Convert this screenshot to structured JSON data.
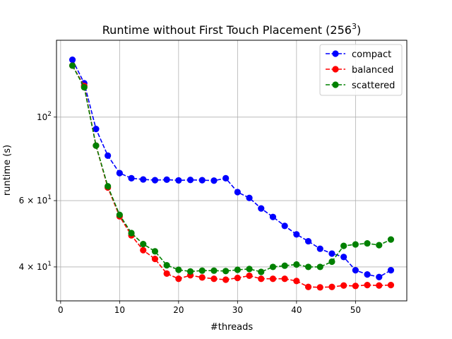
{
  "chart_data": {
    "type": "line",
    "title": "Runtime without First Touch Placement (256",
    "title_sup": "3",
    "title_end": ")",
    "xlabel": "#threads",
    "ylabel": "runtime (s)",
    "xlim": [
      -0.7,
      58.7
    ],
    "ylim": [
      32.5,
      160
    ],
    "yscale": "log",
    "grid": true,
    "legend_position": "top-right",
    "xticks": [
      0,
      10,
      20,
      30,
      40,
      50
    ],
    "yticks": [
      {
        "value": 100,
        "base": "10",
        "exp": "2",
        "prefix": ""
      },
      {
        "value": 60,
        "base": "10",
        "exp": "1",
        "prefix": "6 × "
      },
      {
        "value": 40,
        "base": "10",
        "exp": "1",
        "prefix": "4 × "
      }
    ],
    "x": [
      2,
      4,
      6,
      8,
      10,
      12,
      14,
      16,
      18,
      20,
      22,
      24,
      26,
      28,
      30,
      32,
      34,
      36,
      38,
      40,
      42,
      44,
      46,
      48,
      50,
      52,
      54,
      56
    ],
    "series": [
      {
        "name": "compact",
        "color": "#0000ff",
        "values": [
          142,
          123,
          93,
          79,
          71,
          68.8,
          68.3,
          68.0,
          68.2,
          67.9,
          68.1,
          68.0,
          67.8,
          68.8,
          63.2,
          61.0,
          57.2,
          54.3,
          51.4,
          48.8,
          46.8,
          44.7,
          43.4,
          42.5,
          39.2,
          38.2,
          37.6,
          39.2
        ]
      },
      {
        "name": "balanced",
        "color": "#ff0000",
        "values": [
          137,
          121,
          84,
          65,
          54.5,
          48.5,
          44.3,
          42.0,
          38.4,
          37.2,
          38.0,
          37.5,
          37.2,
          37.0,
          37.4,
          37.9,
          37.2,
          37.2,
          37.2,
          36.7,
          35.4,
          35.3,
          35.4,
          35.7,
          35.6,
          35.8,
          35.7,
          35.8
        ]
      },
      {
        "name": "scattered",
        "color": "#008000",
        "values": [
          137,
          120,
          84,
          65.5,
          55,
          49.2,
          46.0,
          44.0,
          40.4,
          39.3,
          38.9,
          39.1,
          39.1,
          39.0,
          39.3,
          39.5,
          38.8,
          40.0,
          40.3,
          40.6,
          40.0,
          40.0,
          41.3,
          45.5,
          45.9,
          46.2,
          45.7,
          47.3
        ]
      }
    ]
  }
}
